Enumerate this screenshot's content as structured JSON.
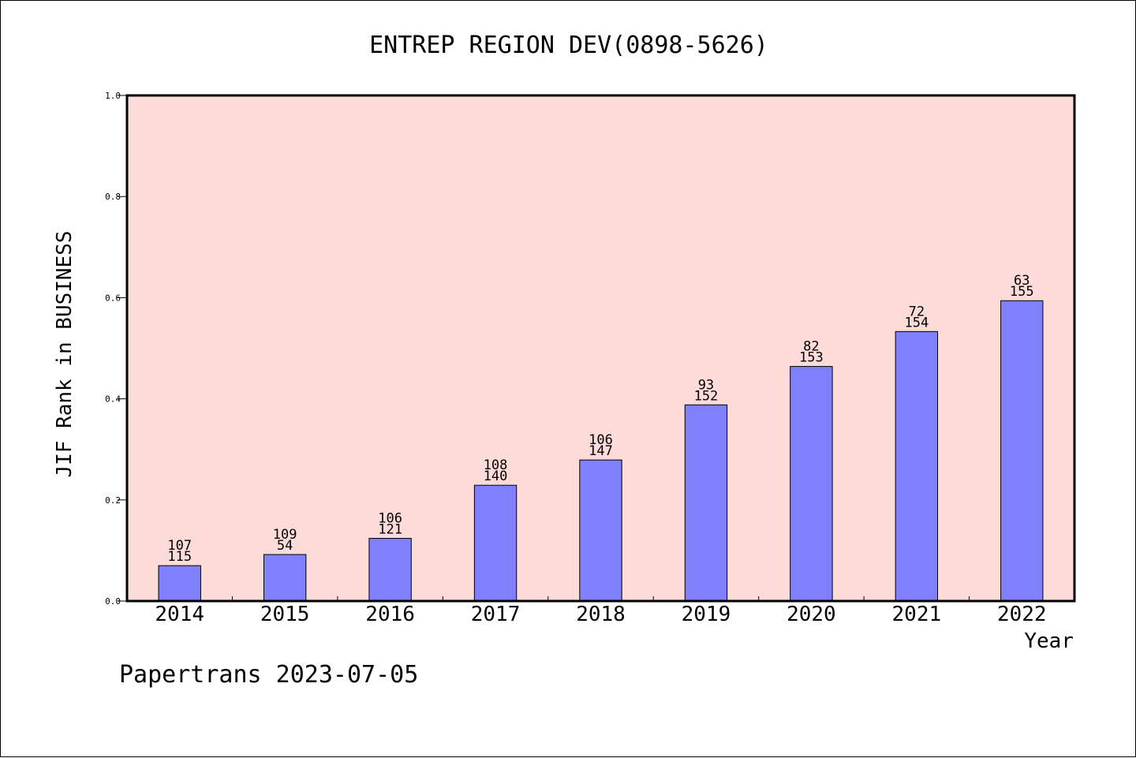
{
  "chart_data": {
    "type": "bar",
    "title": "ENTREP REGION DEV(0898-5626)",
    "xlabel": "Year",
    "ylabel": "JIF Rank in BUSINESS",
    "categories": [
      "2014",
      "2015",
      "2016",
      "2017",
      "2018",
      "2019",
      "2020",
      "2021",
      "2022"
    ],
    "values": [
      0.07,
      0.092,
      0.124,
      0.229,
      0.279,
      0.388,
      0.464,
      0.533,
      0.594
    ],
    "rank_labels": [
      "107",
      "109",
      "106",
      "108",
      "106",
      "93",
      "82",
      "72",
      "63"
    ],
    "total_labels": [
      "115",
      "54",
      "121",
      "140",
      "147",
      "152",
      "153",
      "154",
      "155"
    ],
    "yticks": [
      "0.0",
      "0.2",
      "0.4",
      "0.6",
      "0.8",
      "1.0"
    ],
    "ylim": [
      0,
      1.0
    ],
    "grid": false,
    "colors": {
      "plot_background": "#fddbd8",
      "bar_fill": "#8080ff",
      "bar_stroke": "#000000"
    }
  },
  "footer": {
    "text": "Papertrans 2023-07-05"
  }
}
